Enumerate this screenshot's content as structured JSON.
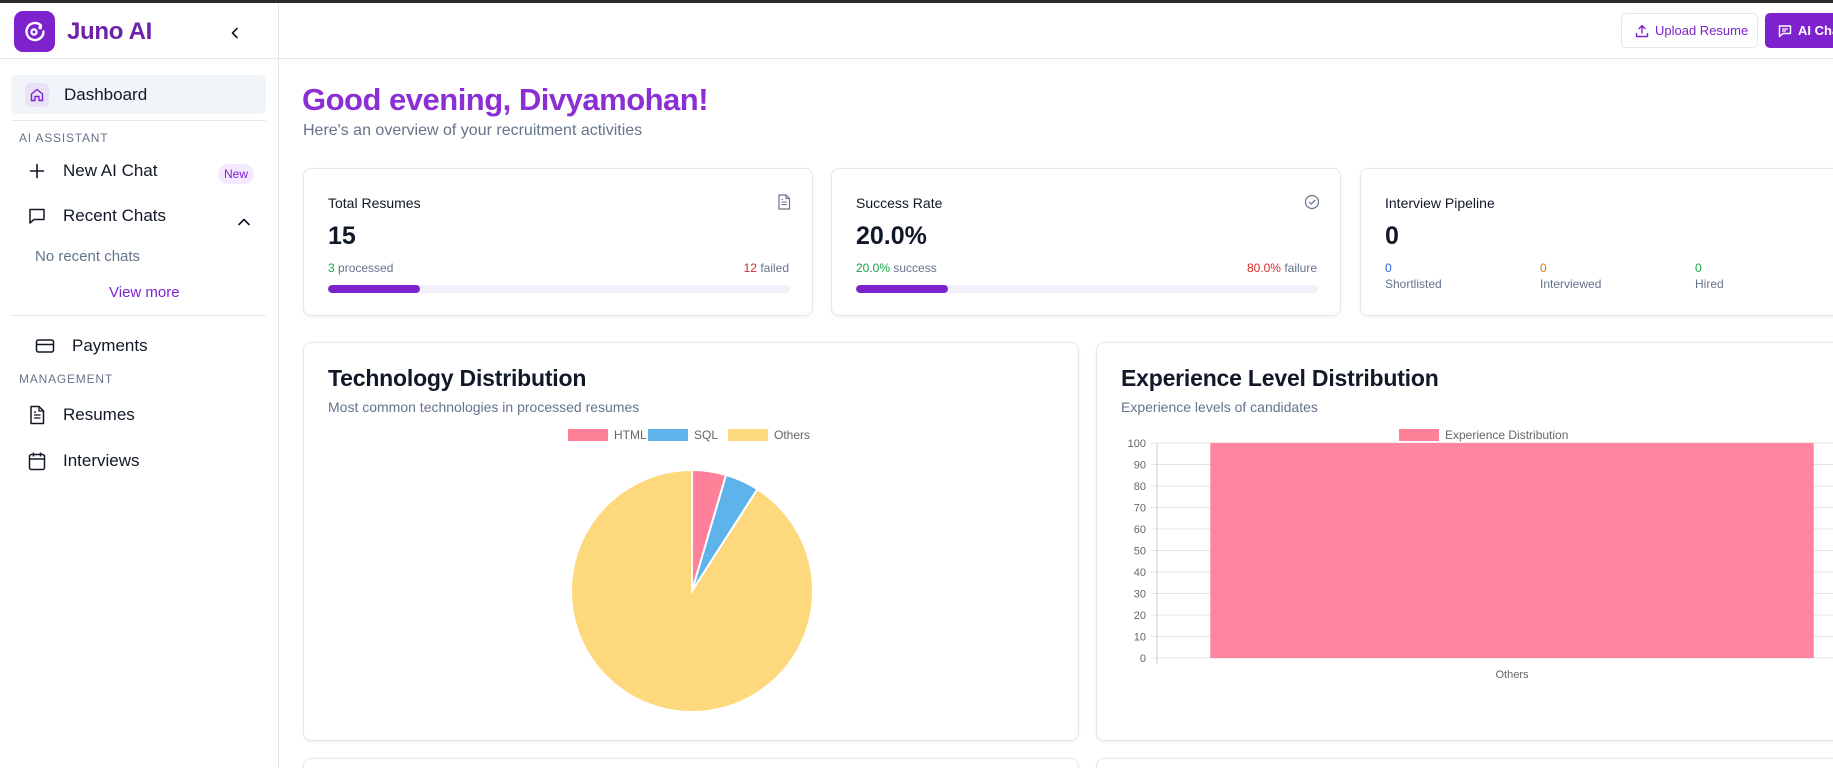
{
  "app": {
    "name": "Juno AI"
  },
  "sidebar": {
    "dashboard": "Dashboard",
    "ai_assistant_label": "AI ASSISTANT",
    "new_ai_chat": "New AI Chat",
    "new_badge": "New",
    "recent_chats": "Recent Chats",
    "no_recent": "No recent chats",
    "view_more": "View more",
    "payments": "Payments",
    "management_label": "MANAGEMENT",
    "resumes": "Resumes",
    "interviews": "Interviews"
  },
  "topbar": {
    "upload_resume": "Upload Resume",
    "ai_chat": "AI Chat"
  },
  "header": {
    "greeting": "Good evening, Divyamohan!",
    "subtitle": "Here's an overview of your recruitment activities"
  },
  "stats": {
    "total_resumes": {
      "title": "Total Resumes",
      "value": "15",
      "processed_count": "3",
      "processed_label": "processed",
      "failed_count": "12",
      "failed_label": "failed",
      "progress_fraction": 0.2
    },
    "success_rate": {
      "title": "Success Rate",
      "value": "20.0%",
      "success_pct": "20.0%",
      "success_label": "success",
      "failure_pct": "80.0%",
      "failure_label": "failure",
      "progress_fraction": 0.2
    },
    "pipeline": {
      "title": "Interview Pipeline",
      "value": "0",
      "shortlisted_count": "0",
      "shortlisted_label": "Shortlisted",
      "interviewed_count": "0",
      "interviewed_label": "Interviewed",
      "hired_count": "0",
      "hired_label": "Hired"
    }
  },
  "charts": {
    "technology": {
      "title": "Technology Distribution",
      "subtitle": "Most common technologies in processed resumes"
    },
    "experience": {
      "title": "Experience Level Distribution",
      "subtitle": "Experience levels of candidates"
    }
  },
  "colors": {
    "brand": "#7e22ce",
    "html": "#ff8099",
    "sql": "#5eb3ea",
    "others": "#fed87c",
    "bar": "#ff8099"
  },
  "icons": {
    "logo": "brand-logo-icon",
    "collapse": "chevron-left-icon",
    "dashboard": "home-icon",
    "new_chat": "plus-icon",
    "recent_chats": "message-square-icon",
    "recent_toggle": "chevron-up-icon",
    "payments": "credit-card-icon",
    "resumes": "file-text-icon",
    "interviews": "calendar-icon",
    "upload": "upload-icon",
    "ai_chat": "message-icon",
    "total_resumes": "file-text-icon",
    "success_rate": "check-circle-icon"
  },
  "chart_data": [
    {
      "type": "pie",
      "legend": [
        "HTML",
        "SQL",
        "Others"
      ],
      "values": [
        1,
        1,
        20
      ],
      "legend_position": "top"
    },
    {
      "type": "bar",
      "categories": [
        "Others"
      ],
      "series": [
        {
          "name": "Experience Distribution",
          "values": [
            100
          ]
        }
      ],
      "ylim": [
        0,
        100
      ],
      "yticks": [
        0,
        10,
        20,
        30,
        40,
        50,
        60,
        70,
        80,
        90,
        100
      ],
      "grid": true,
      "legend_position": "top"
    }
  ]
}
